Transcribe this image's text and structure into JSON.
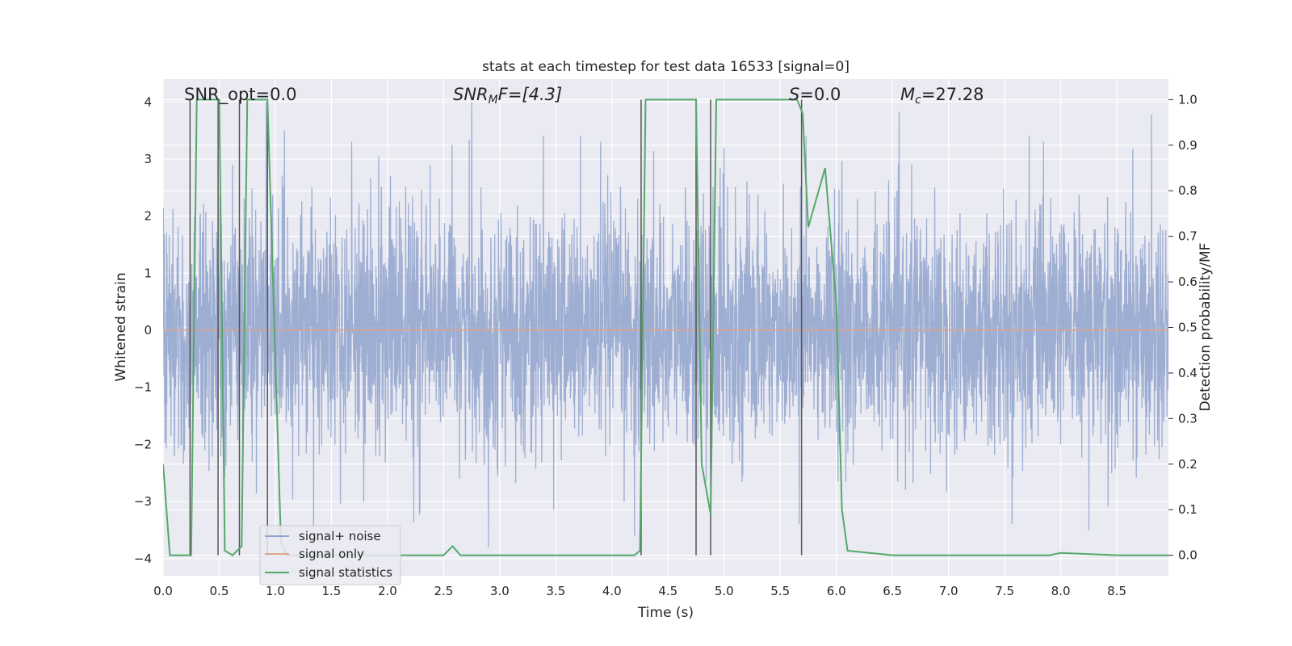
{
  "chart_data": {
    "type": "line",
    "title": "stats at each timestep for test data 16533 [signal=0]",
    "xlabel": "Time (s)",
    "ylabel": "Whitened strain",
    "ylabel_right": "Detection probability/MF",
    "xlim": [
      0,
      8.96
    ],
    "ylim": [
      -4.3,
      4.4
    ],
    "ylim_right": [
      -0.045,
      1.045
    ],
    "x_ticks": [
      "0.0",
      "0.5",
      "1.0",
      "1.5",
      "2.0",
      "2.5",
      "3.0",
      "3.5",
      "4.0",
      "4.5",
      "5.0",
      "5.5",
      "6.0",
      "6.5",
      "7.0",
      "7.5",
      "8.0",
      "8.5"
    ],
    "y_ticks": [
      "−4",
      "−3",
      "−2",
      "−1",
      "0",
      "1",
      "2",
      "3",
      "4"
    ],
    "y_ticks_right": [
      "0.0",
      "0.1",
      "0.2",
      "0.3",
      "0.4",
      "0.5",
      "0.6",
      "0.7",
      "0.8",
      "0.9",
      "1.0"
    ],
    "grid": true,
    "legend_position": "lower-left",
    "annotations": {
      "snr_opt": "SNR_opt=0.0",
      "snr_mf_prefix": "SNR",
      "snr_mf_sub": "M",
      "snr_mf_suffix": "F=[4.3]",
      "s_prefix": "S",
      "s_suffix": "=0.0",
      "mc_prefix": "M",
      "mc_sub": "c",
      "mc_suffix": "=27.28"
    },
    "series": [
      {
        "name": "signal+ noise",
        "color": "#8fa3cc",
        "axis": "left",
        "noise_envelope": {
          "sigma": 1.0,
          "peak": 4.0
        },
        "peaks": [
          {
            "x": 0.62,
            "y": 2.9
          },
          {
            "x": 0.92,
            "y": 4.0
          },
          {
            "x": 1.08,
            "y": 3.5
          },
          {
            "x": 1.68,
            "y": 3.3
          },
          {
            "x": 2.75,
            "y": 4.0
          },
          {
            "x": 3.9,
            "y": 3.3
          },
          {
            "x": 3.72,
            "y": 3.4
          },
          {
            "x": 5.0,
            "y": 3.2
          },
          {
            "x": 5.73,
            "y": 3.4
          },
          {
            "x": 7.72,
            "y": 3.4
          },
          {
            "x": 2.9,
            "y": -3.8
          },
          {
            "x": 4.2,
            "y": -3.6
          },
          {
            "x": 5.67,
            "y": -3.4
          },
          {
            "x": 8.25,
            "y": -3.5
          }
        ]
      },
      {
        "name": "signal only",
        "color": "#e1a38a",
        "axis": "left",
        "x": [
          0.0,
          8.96
        ],
        "y": [
          0.0,
          0.0
        ]
      },
      {
        "name": "signal statistics",
        "color": "#55a868",
        "axis": "right",
        "x": [
          0.0,
          0.06,
          0.25,
          0.3,
          0.5,
          0.55,
          0.62,
          0.7,
          0.75,
          0.93,
          1.05,
          1.1,
          2.5,
          2.58,
          2.65,
          4.2,
          4.25,
          4.3,
          4.75,
          4.8,
          4.88,
          4.93,
          5.65,
          5.7,
          5.75,
          5.9,
          6.0,
          6.05,
          6.1,
          6.5,
          7.9,
          8.0,
          8.5,
          8.96
        ],
        "y": [
          0.2,
          0.0,
          0.0,
          1.0,
          1.0,
          0.01,
          0.0,
          0.02,
          1.0,
          1.0,
          0.03,
          0.0,
          0.0,
          0.02,
          0.0,
          0.0,
          0.01,
          1.0,
          1.0,
          0.2,
          0.09,
          1.0,
          1.0,
          0.97,
          0.72,
          0.85,
          0.55,
          0.1,
          0.01,
          0.0,
          0.0,
          0.005,
          0.0,
          0.0
        ]
      }
    ],
    "vertical_lines": {
      "color": "#555555",
      "x": [
        0.24,
        0.49,
        0.68,
        0.93,
        4.26,
        4.75,
        4.88,
        5.69
      ]
    }
  }
}
